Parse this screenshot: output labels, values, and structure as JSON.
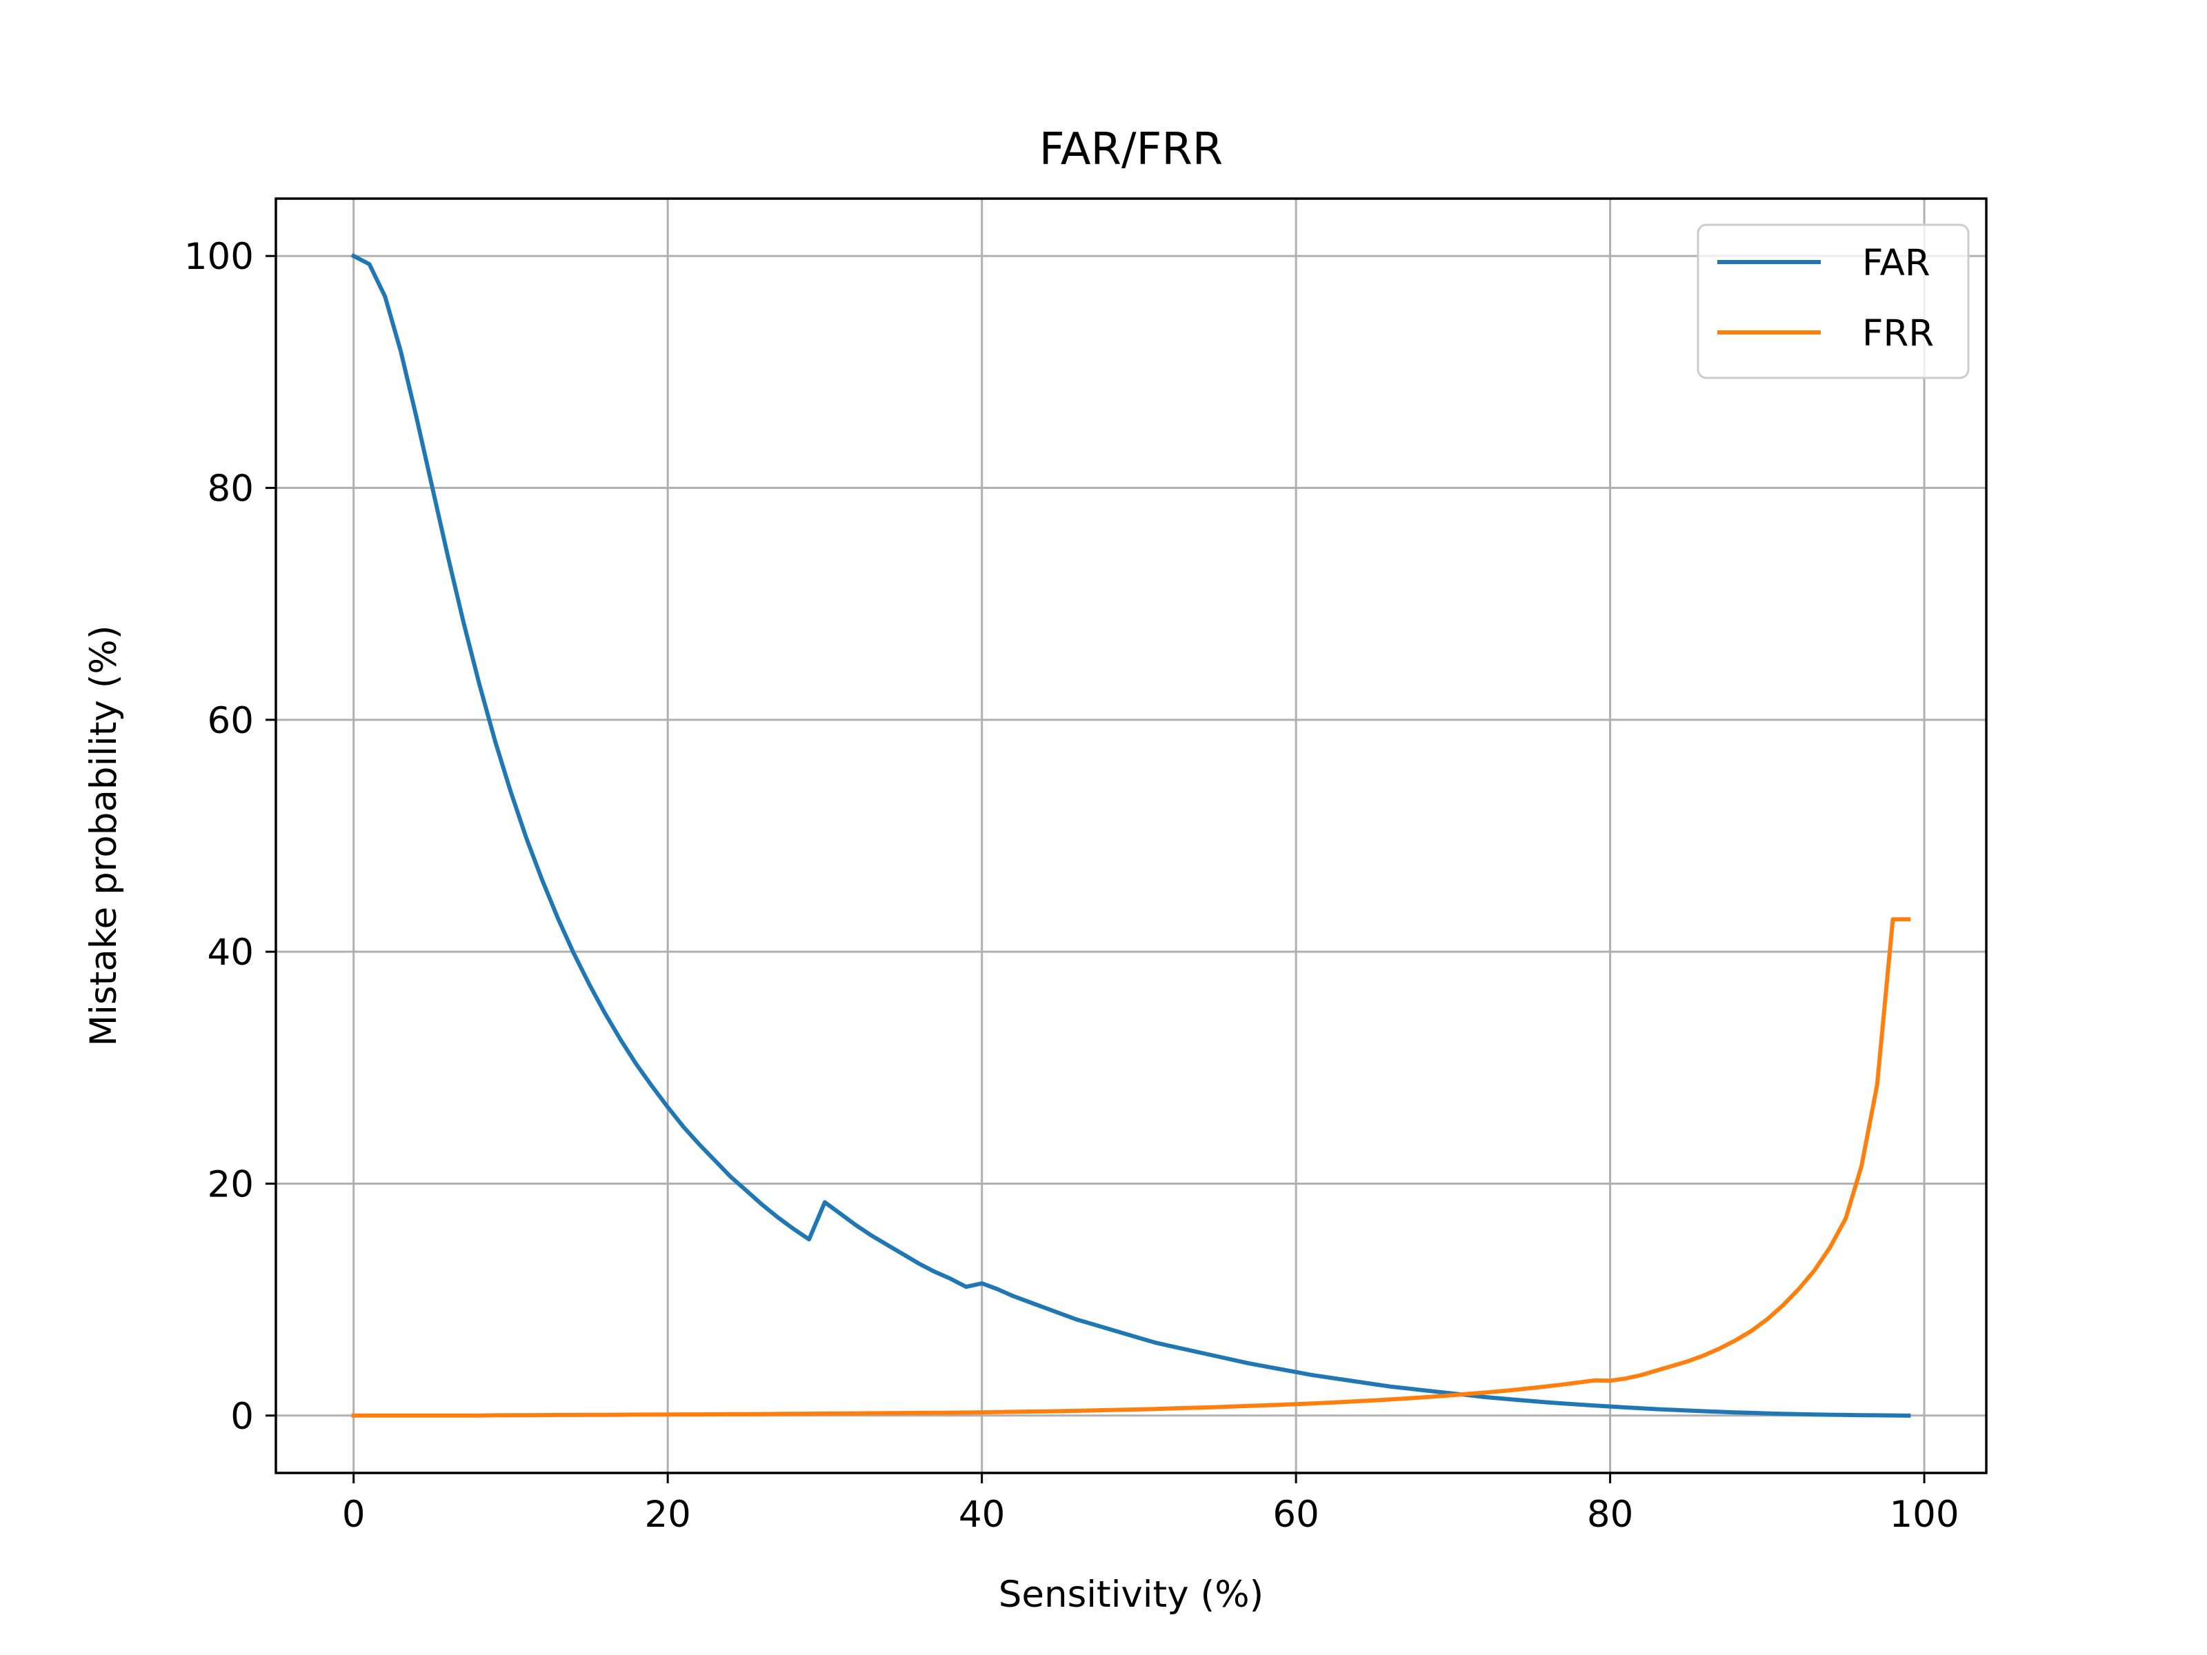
{
  "chart_data": {
    "type": "line",
    "title": "FAR/FRR",
    "xlabel": "Sensitivity (%)",
    "ylabel": "Mistake probability (%)",
    "xlim": [
      -4.95,
      103.95
    ],
    "ylim": [
      -4.95,
      104.95
    ],
    "xticks": [
      0,
      20,
      40,
      60,
      80,
      100
    ],
    "yticks": [
      0,
      20,
      40,
      60,
      80,
      100
    ],
    "grid": true,
    "legend_position": "top-right",
    "x": [
      0,
      1,
      2,
      3,
      4,
      5,
      6,
      7,
      8,
      9,
      10,
      11,
      12,
      13,
      14,
      15,
      16,
      17,
      18,
      19,
      20,
      21,
      22,
      23,
      24,
      25,
      26,
      27,
      28,
      29,
      30,
      31,
      32,
      33,
      34,
      35,
      36,
      37,
      38,
      39,
      40,
      41,
      42,
      43,
      44,
      45,
      46,
      47,
      48,
      49,
      50,
      51,
      52,
      53,
      54,
      55,
      56,
      57,
      58,
      59,
      60,
      61,
      62,
      63,
      64,
      65,
      66,
      67,
      68,
      69,
      70,
      71,
      72,
      73,
      74,
      75,
      76,
      77,
      78,
      79,
      80,
      81,
      82,
      83,
      84,
      85,
      86,
      87,
      88,
      89,
      90,
      91,
      92,
      93,
      94,
      95,
      96,
      97,
      98,
      99
    ],
    "series": [
      {
        "name": "FAR",
        "color": "#1f77b4",
        "values": [
          100,
          99.3,
          96.5,
          91.8,
          86.1,
          80.1,
          74.1,
          68.4,
          63.1,
          58.2,
          53.8,
          49.8,
          46.2,
          42.9,
          39.9,
          37.2,
          34.7,
          32.4,
          30.3,
          28.4,
          26.6,
          24.9,
          23.4,
          22.0,
          20.6,
          19.4,
          18.2,
          17.1,
          16.1,
          15.2,
          18.4,
          17.4,
          16.4,
          15.5,
          14.7,
          13.9,
          13.1,
          12.4,
          11.8,
          11.1,
          11.4,
          10.9,
          10.3,
          9.8,
          9.3,
          8.8,
          8.3,
          7.9,
          7.5,
          7.1,
          6.7,
          6.3,
          6.0,
          5.7,
          5.4,
          5.1,
          4.8,
          4.5,
          4.25,
          4.0,
          3.75,
          3.5,
          3.3,
          3.1,
          2.9,
          2.7,
          2.5,
          2.35,
          2.2,
          2.05,
          1.9,
          1.75,
          1.6,
          1.48,
          1.36,
          1.25,
          1.14,
          1.04,
          0.95,
          0.86,
          0.78,
          0.7,
          0.62,
          0.55,
          0.49,
          0.43,
          0.37,
          0.32,
          0.27,
          0.23,
          0.19,
          0.15,
          0.12,
          0.09,
          0.07,
          0.05,
          0.03,
          0.02,
          0.01,
          0.0
        ]
      },
      {
        "name": "FRR",
        "color": "#ff7f0e",
        "values": [
          0.0,
          0.0,
          0.0,
          0.0,
          0.0,
          0.0,
          0.0,
          0.0,
          0.0,
          0.02,
          0.03,
          0.03,
          0.04,
          0.05,
          0.05,
          0.06,
          0.06,
          0.07,
          0.08,
          0.08,
          0.09,
          0.1,
          0.1,
          0.11,
          0.12,
          0.12,
          0.13,
          0.14,
          0.15,
          0.16,
          0.17,
          0.18,
          0.19,
          0.2,
          0.21,
          0.22,
          0.23,
          0.24,
          0.25,
          0.26,
          0.28,
          0.3,
          0.32,
          0.34,
          0.36,
          0.38,
          0.41,
          0.44,
          0.47,
          0.5,
          0.53,
          0.57,
          0.61,
          0.65,
          0.69,
          0.73,
          0.78,
          0.83,
          0.88,
          0.93,
          0.98,
          1.04,
          1.1,
          1.17,
          1.24,
          1.31,
          1.39,
          1.47,
          1.56,
          1.66,
          1.76,
          1.87,
          1.98,
          2.1,
          2.23,
          2.37,
          2.52,
          2.68,
          2.85,
          3.03,
          3.0,
          3.2,
          3.5,
          3.9,
          4.3,
          4.7,
          5.2,
          5.8,
          6.5,
          7.3,
          8.3,
          9.5,
          10.9,
          12.5,
          14.5,
          17.0,
          21.5,
          28.5,
          42.8,
          42.8
        ]
      }
    ]
  }
}
